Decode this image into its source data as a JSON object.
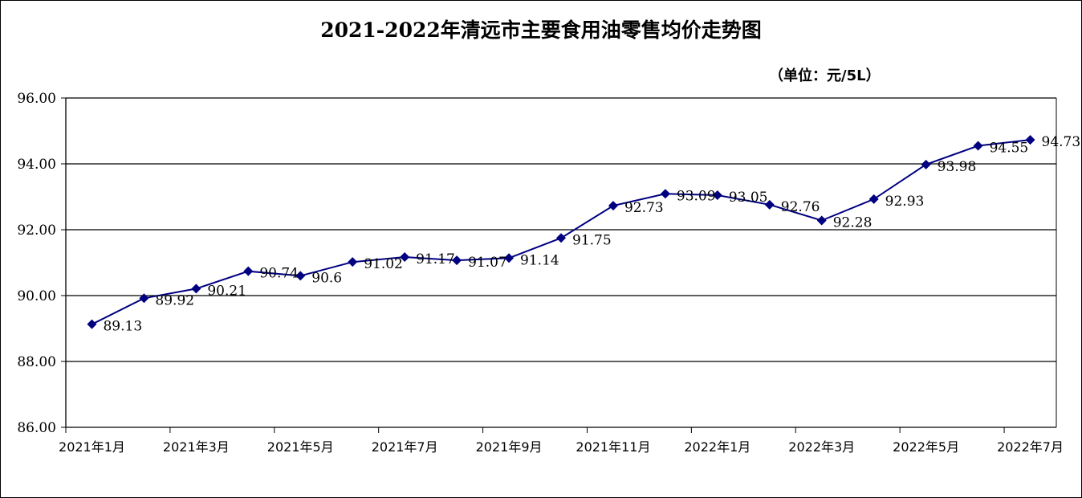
{
  "chart_data": {
    "type": "line",
    "title": "2021-2022年清远市主要食用油零售均价走势图",
    "unit": "（单位：元/5L）",
    "ylim": [
      86,
      96
    ],
    "y_ticks": [
      "86.00",
      "88.00",
      "90.00",
      "92.00",
      "94.00",
      "96.00"
    ],
    "x_tick_labels": [
      "2021年1月",
      "2021年3月",
      "2021年5月",
      "2021年7月",
      "2021年9月",
      "2021年11月",
      "2022年1月",
      "2022年3月",
      "2022年5月",
      "2022年7月"
    ],
    "grid": true,
    "legend": "none",
    "series_color": "#000080",
    "series": [
      {
        "points": [
          {
            "x": "2021年1月",
            "y": 89.13,
            "label": "89.13"
          },
          {
            "x": "2021年2月",
            "y": 89.92,
            "label": "89.92"
          },
          {
            "x": "2021年3月",
            "y": 90.21,
            "label": "90.21"
          },
          {
            "x": "2021年4月",
            "y": 90.74,
            "label": "90.74"
          },
          {
            "x": "2021年5月",
            "y": 90.6,
            "label": "90.6"
          },
          {
            "x": "2021年6月",
            "y": 91.02,
            "label": "91.02"
          },
          {
            "x": "2021年7月",
            "y": 91.17,
            "label": "91.17"
          },
          {
            "x": "2021年8月",
            "y": 91.07,
            "label": "91.07"
          },
          {
            "x": "2021年9月",
            "y": 91.14,
            "label": "91.14"
          },
          {
            "x": "2021年10月",
            "y": 91.75,
            "label": "91.75"
          },
          {
            "x": "2021年11月",
            "y": 92.73,
            "label": "92.73"
          },
          {
            "x": "2021年12月",
            "y": 93.09,
            "label": "93.09"
          },
          {
            "x": "2022年1月",
            "y": 93.05,
            "label": "93.05"
          },
          {
            "x": "2022年2月",
            "y": 92.76,
            "label": "92.76"
          },
          {
            "x": "2022年3月",
            "y": 92.28,
            "label": "92.28"
          },
          {
            "x": "2022年4月",
            "y": 92.93,
            "label": "92.93"
          },
          {
            "x": "2022年5月",
            "y": 93.98,
            "label": "93.98"
          },
          {
            "x": "2022年6月",
            "y": 94.55,
            "label": "94.55"
          },
          {
            "x": "2022年7月",
            "y": 94.73,
            "label": "94.73"
          }
        ]
      }
    ]
  }
}
